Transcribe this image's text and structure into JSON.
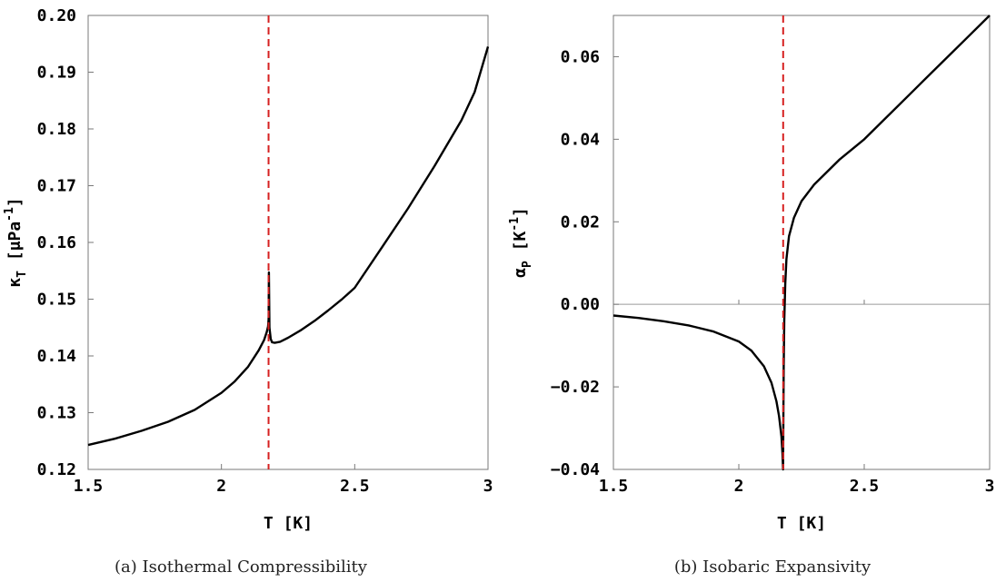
{
  "captions": {
    "a": "(a) Isothermal Compressibility",
    "b": "(b) Isobaric Expansivity"
  },
  "chart_data": [
    {
      "type": "line",
      "title": "",
      "xlabel": "T [K]",
      "ylabel": "κT [μPa⁻¹]",
      "ylabel_symbol": "κ",
      "ylabel_sub": "T",
      "ylabel_unit": "[μPa",
      "ylabel_sup": "-1",
      "ylabel_close": "]",
      "xlim": [
        1.5,
        3.0
      ],
      "ylim": [
        0.12,
        0.2
      ],
      "xticks": [
        "1.5",
        "2",
        "2.5",
        "3"
      ],
      "xtick_values": [
        1.5,
        2.0,
        2.5,
        3.0
      ],
      "yticks": [
        "0.12",
        "0.13",
        "0.14",
        "0.15",
        "0.16",
        "0.17",
        "0.18",
        "0.19",
        "0.20"
      ],
      "ytick_values": [
        0.12,
        0.13,
        0.14,
        0.15,
        0.16,
        0.17,
        0.18,
        0.19,
        0.2
      ],
      "grid": false,
      "zero_line": false,
      "vline": {
        "x": 2.1768,
        "color": "#d62020",
        "style": "dashed"
      },
      "series": [
        {
          "color": "#000000",
          "x": [
            1.5,
            1.6,
            1.7,
            1.8,
            1.9,
            2.0,
            2.05,
            2.1,
            2.14,
            2.16,
            2.17,
            2.175,
            2.177,
            2.178,
            2.18,
            2.185,
            2.19,
            2.2,
            2.22,
            2.25,
            2.3,
            2.35,
            2.4,
            2.45,
            2.5,
            2.6,
            2.7,
            2.8,
            2.9,
            2.95,
            3.0
          ],
          "y": [
            0.1243,
            0.1254,
            0.1268,
            0.1284,
            0.1305,
            0.1335,
            0.1355,
            0.1381,
            0.141,
            0.1428,
            0.1442,
            0.1452,
            0.1465,
            0.1547,
            0.145,
            0.143,
            0.1424,
            0.1423,
            0.1425,
            0.1432,
            0.1446,
            0.1462,
            0.148,
            0.1499,
            0.152,
            0.159,
            0.166,
            0.1735,
            0.1815,
            0.1865,
            0.1945
          ]
        }
      ]
    },
    {
      "type": "line",
      "title": "",
      "xlabel": "T [K]",
      "ylabel": "αP [K⁻¹]",
      "ylabel_symbol": "α",
      "ylabel_sub": "P",
      "ylabel_unit": "[K",
      "ylabel_sup": "-1",
      "ylabel_close": "]",
      "xlim": [
        1.5,
        3.0
      ],
      "ylim": [
        -0.04,
        0.07
      ],
      "xticks": [
        "1.5",
        "2",
        "2.5",
        "3"
      ],
      "xtick_values": [
        1.5,
        2.0,
        2.5,
        3.0
      ],
      "yticks": [
        "−0.04",
        "−0.02",
        "0.00",
        "0.02",
        "0.04",
        "0.06"
      ],
      "ytick_values": [
        -0.04,
        -0.02,
        0.0,
        0.02,
        0.04,
        0.06
      ],
      "grid": false,
      "zero_line": true,
      "vline": {
        "x": 2.1768,
        "color": "#d62020",
        "style": "dashed"
      },
      "series": [
        {
          "color": "#000000",
          "x": [
            1.5,
            1.6,
            1.7,
            1.8,
            1.9,
            2.0,
            2.05,
            2.1,
            2.13,
            2.15,
            2.16,
            2.17,
            2.174,
            2.1765,
            2.178,
            2.179,
            2.181,
            2.185,
            2.19,
            2.2,
            2.22,
            2.25,
            2.3,
            2.4,
            2.5,
            2.6,
            2.7,
            2.8,
            2.9,
            3.0
          ],
          "y": [
            -0.0027,
            -0.0033,
            -0.0041,
            -0.0051,
            -0.0066,
            -0.009,
            -0.0112,
            -0.015,
            -0.019,
            -0.0235,
            -0.027,
            -0.032,
            -0.036,
            -0.04,
            -0.025,
            -0.015,
            -0.004,
            0.005,
            0.011,
            0.0165,
            0.021,
            0.025,
            0.029,
            0.035,
            0.04,
            0.046,
            0.052,
            0.058,
            0.064,
            0.07
          ]
        }
      ]
    }
  ]
}
